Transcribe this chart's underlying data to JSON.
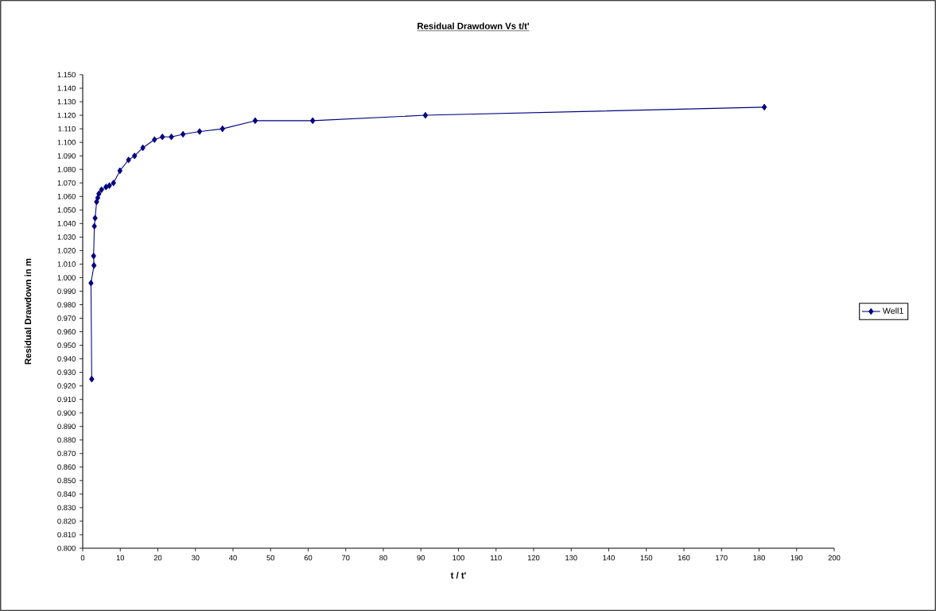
{
  "chart_data": {
    "type": "line",
    "title": "Residual Drawdown Vs t/t'",
    "xlabel": "t / t'",
    "ylabel": "Residual Drawdown in m",
    "xlim": [
      0,
      200
    ],
    "ylim": [
      0.8,
      1.15
    ],
    "xticks": [
      0,
      10,
      20,
      30,
      40,
      50,
      60,
      70,
      80,
      90,
      100,
      110,
      120,
      130,
      140,
      150,
      160,
      170,
      180,
      190,
      200
    ],
    "yticks": [
      {
        "value": 0.8,
        "label": "0.800"
      },
      {
        "value": 0.81,
        "label": "0.810"
      },
      {
        "value": 0.82,
        "label": "0.820"
      },
      {
        "value": 0.83,
        "label": "0.830"
      },
      {
        "value": 0.84,
        "label": "0.840"
      },
      {
        "value": 0.85,
        "label": "0.850"
      },
      {
        "value": 0.86,
        "label": "0.860"
      },
      {
        "value": 0.87,
        "label": "0.870"
      },
      {
        "value": 0.88,
        "label": "0.880"
      },
      {
        "value": 0.89,
        "label": "0.890"
      },
      {
        "value": 0.9,
        "label": "0.900"
      },
      {
        "value": 0.91,
        "label": "0.910"
      },
      {
        "value": 0.92,
        "label": "0.920"
      },
      {
        "value": 0.93,
        "label": "0.930"
      },
      {
        "value": 0.94,
        "label": "0.940"
      },
      {
        "value": 0.95,
        "label": "0.950"
      },
      {
        "value": 0.96,
        "label": "0.960"
      },
      {
        "value": 0.97,
        "label": "0.970"
      },
      {
        "value": 0.98,
        "label": "0.980"
      },
      {
        "value": 0.99,
        "label": "0.990"
      },
      {
        "value": 1.0,
        "label": "1.000"
      },
      {
        "value": 1.01,
        "label": "1.010"
      },
      {
        "value": 1.02,
        "label": "1.020"
      },
      {
        "value": 1.03,
        "label": "1.030"
      },
      {
        "value": 1.04,
        "label": "1.040"
      },
      {
        "value": 1.05,
        "label": "1.050"
      },
      {
        "value": 1.06,
        "label": "1.060"
      },
      {
        "value": 1.07,
        "label": "1.070"
      },
      {
        "value": 1.08,
        "label": "1.080"
      },
      {
        "value": 1.09,
        "label": "1.090"
      },
      {
        "value": 1.1,
        "label": "1.100"
      },
      {
        "value": 1.11,
        "label": "1.110"
      },
      {
        "value": 1.12,
        "label": "1.120"
      },
      {
        "value": 1.13,
        "label": "1.130"
      },
      {
        "value": 1.14,
        "label": "1.140"
      },
      {
        "value": 1.15,
        "label": "1.150"
      }
    ],
    "grid": false,
    "legend": "right",
    "marker": "diamond",
    "series": [
      {
        "name": "Well1",
        "color": "#000080",
        "x": [
          2.4,
          2.2,
          3.0,
          2.9,
          3.1,
          3.3,
          3.7,
          4.0,
          4.3,
          5.0,
          6.2,
          7.1,
          8.2,
          9.9,
          12.2,
          13.8,
          16.0,
          19.1,
          21.2,
          23.6,
          26.7,
          31.1,
          37.2,
          45.9,
          61.2,
          91.2,
          181.4
        ],
        "values": [
          0.925,
          0.996,
          1.009,
          1.016,
          1.038,
          1.044,
          1.056,
          1.059,
          1.062,
          1.065,
          1.067,
          1.068,
          1.07,
          1.079,
          1.087,
          1.09,
          1.096,
          1.102,
          1.104,
          1.104,
          1.106,
          1.108,
          1.11,
          1.116,
          1.116,
          1.12,
          1.126
        ]
      }
    ]
  }
}
